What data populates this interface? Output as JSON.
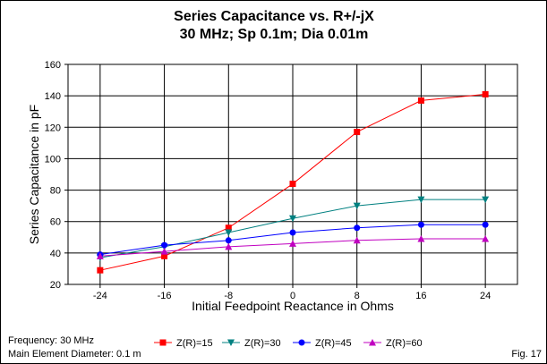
{
  "chart_data": {
    "type": "line",
    "title": "Series Capacitance vs. R+/-jX",
    "subtitle": "30 MHz; Sp 0.1m; Dia 0.01m",
    "xlabel": "Initial Feedpoint Reactance in Ohms",
    "ylabel": "Series Capacitance in pF",
    "x": [
      -24,
      -16,
      -8,
      0,
      8,
      16,
      24
    ],
    "x_ticks": [
      "-24",
      "-16",
      "-8",
      "0",
      "8",
      "16",
      "24"
    ],
    "xlim": [
      -28,
      28
    ],
    "ylim": [
      20,
      160
    ],
    "y_ticks": [
      "20",
      "40",
      "60",
      "80",
      "100",
      "120",
      "140",
      "160"
    ],
    "grid": true,
    "series": [
      {
        "name": "Z(R)=15",
        "color": "#ff0000",
        "marker": "square",
        "values": [
          29,
          38,
          56,
          84,
          117,
          137,
          141
        ]
      },
      {
        "name": "Z(R)=30",
        "color": "#008080",
        "marker": "triangle-down",
        "values": [
          37,
          44,
          53,
          62,
          70,
          74,
          74
        ]
      },
      {
        "name": "Z(R)=45",
        "color": "#0000ff",
        "marker": "circle",
        "values": [
          39,
          45,
          48,
          53,
          56,
          58,
          58
        ]
      },
      {
        "name": "Z(R)=60",
        "color": "#c000c0",
        "marker": "triangle-up",
        "values": [
          38,
          41,
          44,
          46,
          48,
          49,
          49
        ]
      }
    ]
  },
  "notes": {
    "frequency": "Frequency: 30 MHz",
    "diameter": "Main Element Diameter: 0.1 m",
    "figure": "Fig. 17"
  }
}
